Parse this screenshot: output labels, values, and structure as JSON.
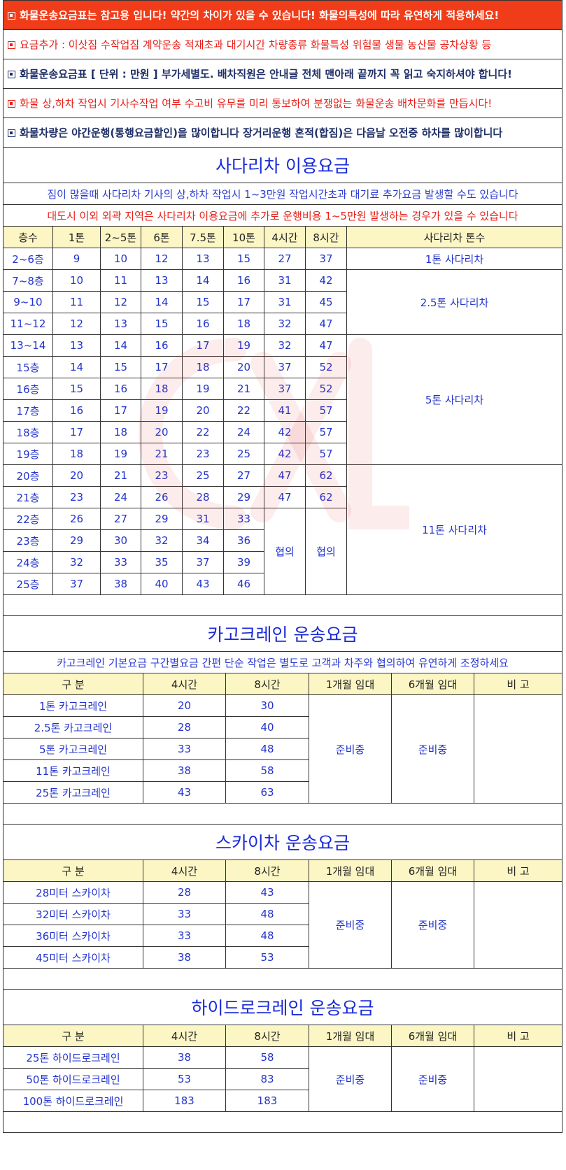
{
  "notices": [
    {
      "text": "화물운송요금표는 참고용 입니다! 약간의 차이가 있을 수 있습니다! 화물의특성에 따라 유연하게 적용하세요!",
      "style": "red-bg"
    },
    {
      "text": "요금추가 : 이삿짐 수작업짐 계약운송 적재초과 대기시간 차량종류 화물특성 위험물 생물 농산물 공차상황 등",
      "style": "red-text"
    },
    {
      "text": "화물운송요금표 [ 단위 : 만원 ] 부가세별도. 배차직원은 안내글 전체 맨아래 끝까지 꼭 읽고 숙지하셔야 합니다!",
      "style": "navy"
    },
    {
      "text": "화물 상,하차 작업시 기사수작업 여부 수고비 유무를 미리 통보하여 분쟁없는 화물운송 배차문화를 만듭시다!",
      "style": "red-text"
    },
    {
      "text": "화물차량은 야간운행(통행요금할인)을 많이합니다 장거리운행 혼적(합짐)은 다음날 오전중 하차를 많이합니다",
      "style": "navy"
    }
  ],
  "ladder": {
    "title": "사다리차 이용요금",
    "note1": "짐이 많을때 사다리차 기사의 상,하차 작업시 1~3만원 작업시간초과 대기료 추가요금 발생할 수도 있습니다",
    "note2": "대도시 이외 외곽 지역은 사다리차 이용요금에 추가로 운행비용 1~5만원 발생하는 경우가 있을 수 있습니다",
    "headers": [
      "층수",
      "1톤",
      "2~5톤",
      "6톤",
      "7.5톤",
      "10톤",
      "4시간",
      "8시간",
      "사다리차 톤수"
    ],
    "rows": [
      [
        "2~6층",
        "9",
        "10",
        "12",
        "13",
        "15",
        "27",
        "37"
      ],
      [
        "7~8층",
        "10",
        "11",
        "13",
        "14",
        "16",
        "31",
        "42"
      ],
      [
        "9~10",
        "11",
        "12",
        "14",
        "15",
        "17",
        "31",
        "45"
      ],
      [
        "11~12",
        "12",
        "13",
        "15",
        "16",
        "18",
        "32",
        "47"
      ],
      [
        "13~14",
        "13",
        "14",
        "16",
        "17",
        "19",
        "32",
        "47"
      ],
      [
        "15층",
        "14",
        "15",
        "17",
        "18",
        "20",
        "37",
        "52"
      ],
      [
        "16층",
        "15",
        "16",
        "18",
        "19",
        "21",
        "37",
        "52"
      ],
      [
        "17층",
        "16",
        "17",
        "19",
        "20",
        "22",
        "41",
        "57"
      ],
      [
        "18층",
        "17",
        "18",
        "20",
        "22",
        "24",
        "42",
        "57"
      ],
      [
        "19층",
        "18",
        "19",
        "21",
        "23",
        "25",
        "42",
        "57"
      ],
      [
        "20층",
        "20",
        "21",
        "23",
        "25",
        "27",
        "47",
        "62"
      ],
      [
        "21층",
        "23",
        "24",
        "26",
        "28",
        "29",
        "47",
        "62"
      ],
      [
        "22층",
        "26",
        "27",
        "29",
        "31",
        "33"
      ],
      [
        "23층",
        "29",
        "30",
        "32",
        "34",
        "36"
      ],
      [
        "24층",
        "32",
        "33",
        "35",
        "37",
        "39"
      ],
      [
        "25층",
        "37",
        "38",
        "40",
        "43",
        "46"
      ]
    ],
    "negotiation": "협의",
    "tonnage_groups": [
      "1톤 사다리차",
      "2.5톤 사다리차",
      "5톤 사다리차",
      "11톤 사다리차"
    ]
  },
  "cargo": {
    "title": "카고크레인 운송요금",
    "note": "카고크레인 기본요금 구간별요금 간편 단순 작업은 별도로 고객과 차주와 협의하여 유연하게 조정하세요",
    "headers": [
      "구 분",
      "4시간",
      "8시간",
      "1개월 임대",
      "6개월 임대",
      "비 고"
    ],
    "rows": [
      [
        "1톤 카고크레인",
        "20",
        "30"
      ],
      [
        "2.5톤 카고크레인",
        "28",
        "40"
      ],
      [
        "5톤 카고크레인",
        "33",
        "48"
      ],
      [
        "11톤 카고크레인",
        "38",
        "58"
      ],
      [
        "25톤 카고크레인",
        "43",
        "63"
      ]
    ],
    "pending1": "준비중",
    "pending6": "준비중"
  },
  "sky": {
    "title": "스카이차 운송요금",
    "headers": [
      "구 분",
      "4시간",
      "8시간",
      "1개월 임대",
      "6개월 임대",
      "비 고"
    ],
    "rows": [
      [
        "28미터 스카이차",
        "28",
        "43"
      ],
      [
        "32미터 스카이차",
        "33",
        "48"
      ],
      [
        "36미터 스카이차",
        "33",
        "48"
      ],
      [
        "45미터 스카이차",
        "38",
        "53"
      ]
    ],
    "pending1": "준비중",
    "pending6": "준비중"
  },
  "hydro": {
    "title": "하이드로크레인 운송요금",
    "headers": [
      "구 분",
      "4시간",
      "8시간",
      "1개월 임대",
      "6개월 임대",
      "비 고"
    ],
    "rows": [
      [
        "25톤 하이드로크레인",
        "38",
        "58"
      ],
      [
        "50톤 하이드로크레인",
        "53",
        "83"
      ],
      [
        "100톤 하이드로크레인",
        "183",
        "183"
      ]
    ],
    "pending1": "준비중",
    "pending6": "준비중"
  },
  "colors": {
    "notice_red_bg": "#f03c19",
    "header_bg": "#fcf6c5",
    "value_blue": "#2233cc",
    "title_blue": "#1a2ad8"
  }
}
